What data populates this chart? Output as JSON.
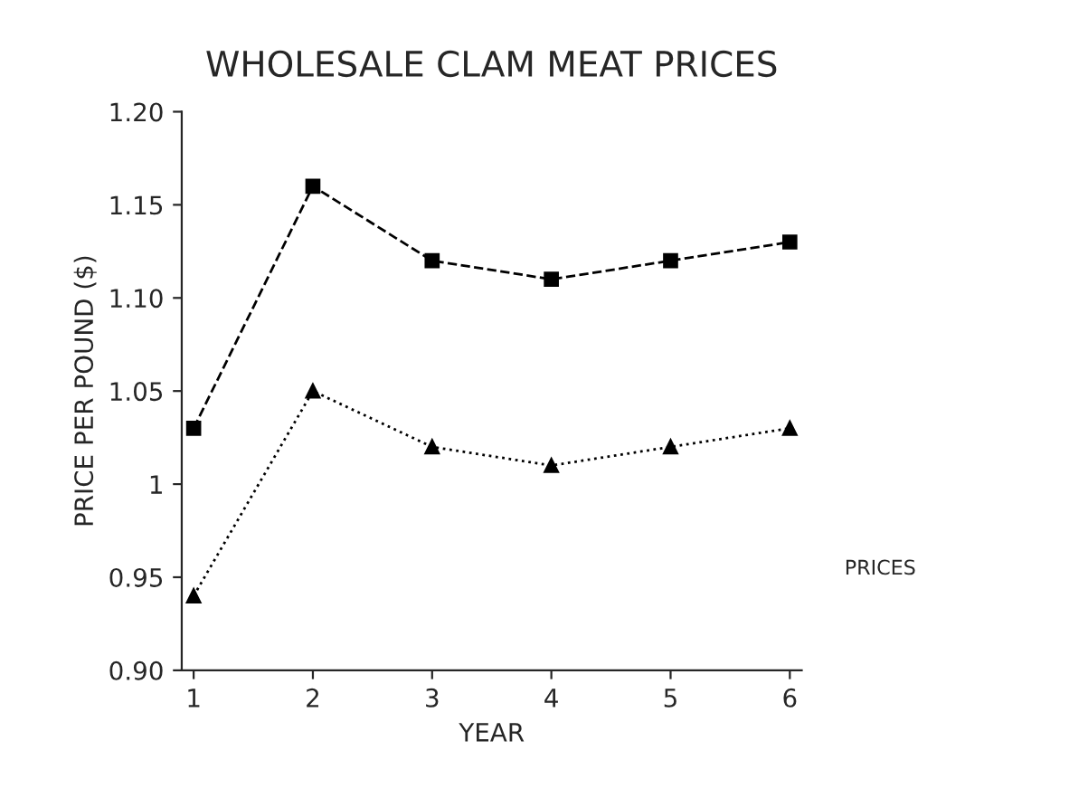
{
  "chart_data": {
    "type": "line",
    "title": "WHOLESALE CLAM MEAT PRICES",
    "xlabel": "YEAR",
    "ylabel": "PRICE PER POUND ($)",
    "annotations": [
      "PRICES"
    ],
    "categories": [
      "1",
      "2",
      "3",
      "4",
      "5",
      "6"
    ],
    "series": [
      {
        "color": "#000000",
        "marker": "square",
        "line_style": "dashed",
        "values": [
          1.03,
          1.16,
          1.12,
          1.11,
          1.12,
          1.13
        ]
      },
      {
        "color": "#000000",
        "marker": "triangle",
        "line_style": "dotted",
        "values": [
          0.94,
          1.05,
          1.02,
          1.01,
          1.02,
          1.03
        ]
      }
    ],
    "ylim": [
      0.9,
      1.2
    ],
    "yticks": [
      {
        "value": 0.9,
        "label": "0.90"
      },
      {
        "value": 0.95,
        "label": "0.95"
      },
      1,
      1.05,
      {
        "value": 1.1,
        "label": "1.10"
      },
      1.15,
      {
        "value": 1.2,
        "label": "1.20"
      }
    ],
    "grid": false
  }
}
